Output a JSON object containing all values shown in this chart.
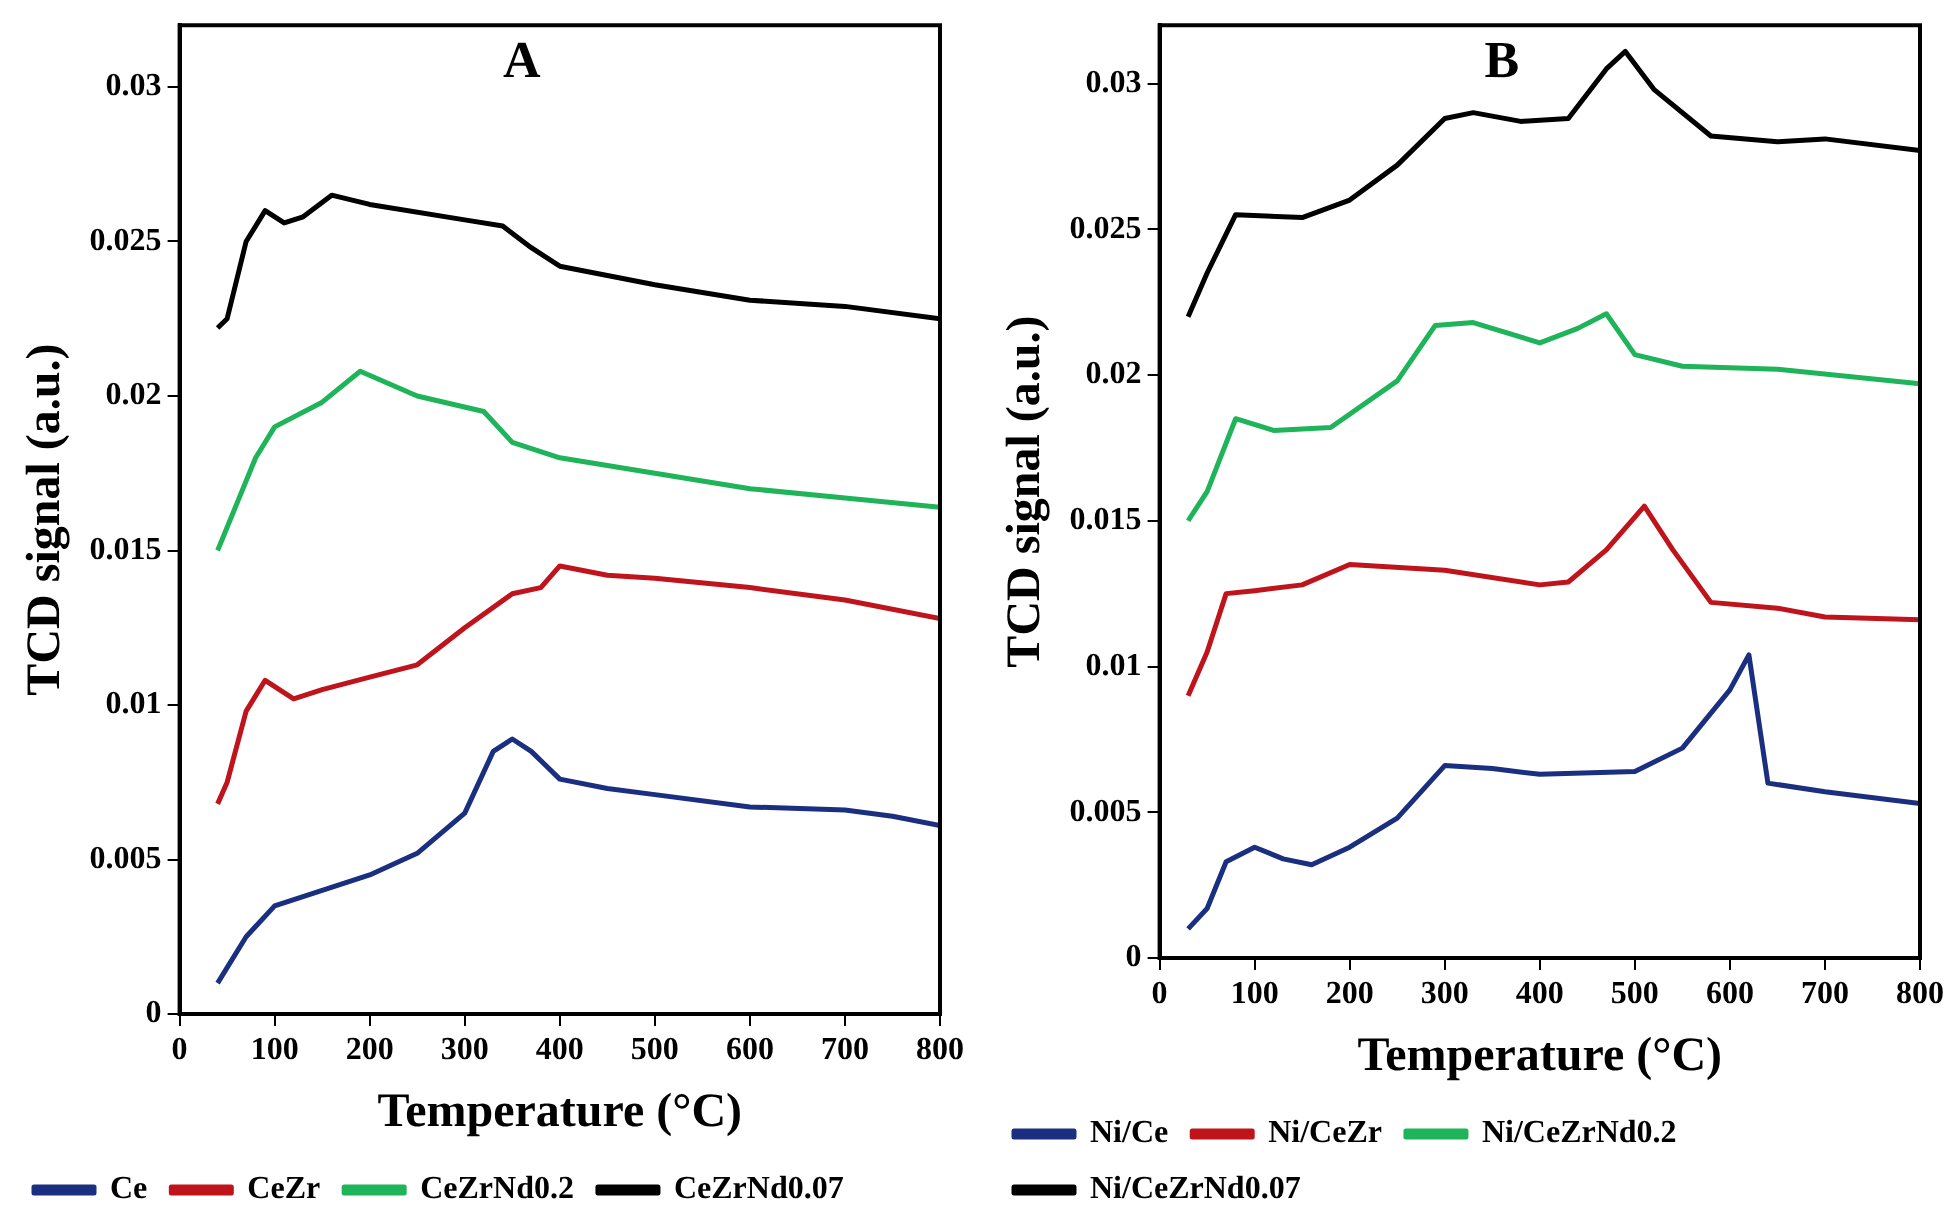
{
  "chart_data": [
    {
      "type": "line",
      "annotations": [
        "A"
      ],
      "xlabel": "Temperature (°C)",
      "ylabel": "TCD signal (a.u.)",
      "xlim": [
        0,
        800
      ],
      "xticks": [
        0,
        100,
        200,
        300,
        400,
        500,
        600,
        700,
        800
      ],
      "ylim": [
        0,
        0.032
      ],
      "yticks": [
        0,
        0.005,
        0.01,
        0.015,
        0.02,
        0.025,
        0.03
      ],
      "grid": false,
      "legend": "bottom",
      "marker": "none",
      "line_style": "solid",
      "series": [
        {
          "name": "Ce",
          "color": "#1a2f80",
          "x": [
            40,
            50,
            70,
            100,
            150,
            200,
            250,
            300,
            330,
            350,
            370,
            400,
            450,
            500,
            600,
            700,
            750,
            800
          ],
          "values": [
            0.001,
            0.0015,
            0.0025,
            0.0035,
            0.004,
            0.0045,
            0.0052,
            0.0065,
            0.0085,
            0.0089,
            0.0085,
            0.0076,
            0.0073,
            0.0071,
            0.0067,
            0.0066,
            0.0064,
            0.0061
          ]
        },
        {
          "name": "CeZr",
          "color": "#c0141c",
          "x": [
            40,
            50,
            70,
            90,
            120,
            150,
            200,
            250,
            300,
            350,
            380,
            400,
            450,
            500,
            600,
            700,
            800
          ],
          "values": [
            0.0068,
            0.0075,
            0.0098,
            0.0108,
            0.0102,
            0.0105,
            0.0109,
            0.0113,
            0.0125,
            0.0136,
            0.0138,
            0.0145,
            0.0142,
            0.0141,
            0.0138,
            0.0134,
            0.0128
          ]
        },
        {
          "name": "CeZrNd0.2",
          "color": "#1fb35a",
          "x": [
            40,
            60,
            80,
            100,
            150,
            190,
            250,
            320,
            350,
            400,
            500,
            600,
            700,
            800
          ],
          "values": [
            0.015,
            0.0165,
            0.018,
            0.019,
            0.0198,
            0.0208,
            0.02,
            0.0195,
            0.0185,
            0.018,
            0.0175,
            0.017,
            0.0167,
            0.0164
          ]
        },
        {
          "name": "CeZrNd0.07",
          "color": "#000000",
          "x": [
            40,
            50,
            70,
            90,
            110,
            130,
            160,
            200,
            300,
            340,
            370,
            400,
            500,
            600,
            700,
            800
          ],
          "values": [
            0.0222,
            0.0225,
            0.025,
            0.026,
            0.0256,
            0.0258,
            0.0265,
            0.0262,
            0.0257,
            0.0255,
            0.0248,
            0.0242,
            0.0236,
            0.0231,
            0.0229,
            0.0225
          ]
        }
      ]
    },
    {
      "type": "line",
      "annotations": [
        "B"
      ],
      "xlabel": "Temperature (°C)",
      "ylabel": "TCD signal (a.u.)",
      "xlim": [
        0,
        800
      ],
      "xticks": [
        0,
        100,
        200,
        300,
        400,
        500,
        600,
        700,
        800
      ],
      "ylim": [
        0,
        0.032
      ],
      "yticks": [
        0,
        0.005,
        0.01,
        0.015,
        0.02,
        0.025,
        0.03
      ],
      "grid": false,
      "legend": "bottom",
      "marker": "none",
      "line_style": "solid",
      "series": [
        {
          "name": "Ni/Ce",
          "color": "#1a2f80",
          "x": [
            30,
            50,
            70,
            100,
            130,
            160,
            200,
            250,
            300,
            350,
            400,
            500,
            550,
            600,
            620,
            640,
            700,
            800
          ],
          "values": [
            0.001,
            0.0017,
            0.0033,
            0.0038,
            0.0034,
            0.0032,
            0.0038,
            0.0048,
            0.0066,
            0.0065,
            0.0063,
            0.0064,
            0.0072,
            0.0092,
            0.0104,
            0.006,
            0.0057,
            0.0053
          ]
        },
        {
          "name": "Ni/CeZr",
          "color": "#c0141c",
          "x": [
            30,
            50,
            70,
            100,
            150,
            200,
            300,
            400,
            430,
            470,
            510,
            540,
            580,
            650,
            700,
            800
          ],
          "values": [
            0.009,
            0.0105,
            0.0125,
            0.0126,
            0.0128,
            0.0135,
            0.0133,
            0.0128,
            0.0129,
            0.014,
            0.0155,
            0.014,
            0.0122,
            0.012,
            0.0117,
            0.0116
          ]
        },
        {
          "name": "Ni/CeZrNd0.2",
          "color": "#1fb35a",
          "x": [
            30,
            50,
            80,
            120,
            180,
            250,
            290,
            330,
            400,
            440,
            470,
            500,
            550,
            650,
            800
          ],
          "values": [
            0.015,
            0.016,
            0.0185,
            0.0181,
            0.0182,
            0.0198,
            0.0217,
            0.0218,
            0.0211,
            0.0216,
            0.0221,
            0.0207,
            0.0203,
            0.0202,
            0.0197
          ]
        },
        {
          "name": "Ni/CeZrNd0.07",
          "color": "#000000",
          "x": [
            30,
            50,
            80,
            150,
            200,
            250,
            300,
            330,
            380,
            430,
            470,
            490,
            520,
            580,
            650,
            700,
            800
          ],
          "values": [
            0.022,
            0.0235,
            0.0255,
            0.0254,
            0.026,
            0.0272,
            0.0288,
            0.029,
            0.0287,
            0.0288,
            0.0305,
            0.0311,
            0.0298,
            0.0282,
            0.028,
            0.0281,
            0.0277
          ]
        }
      ]
    }
  ]
}
